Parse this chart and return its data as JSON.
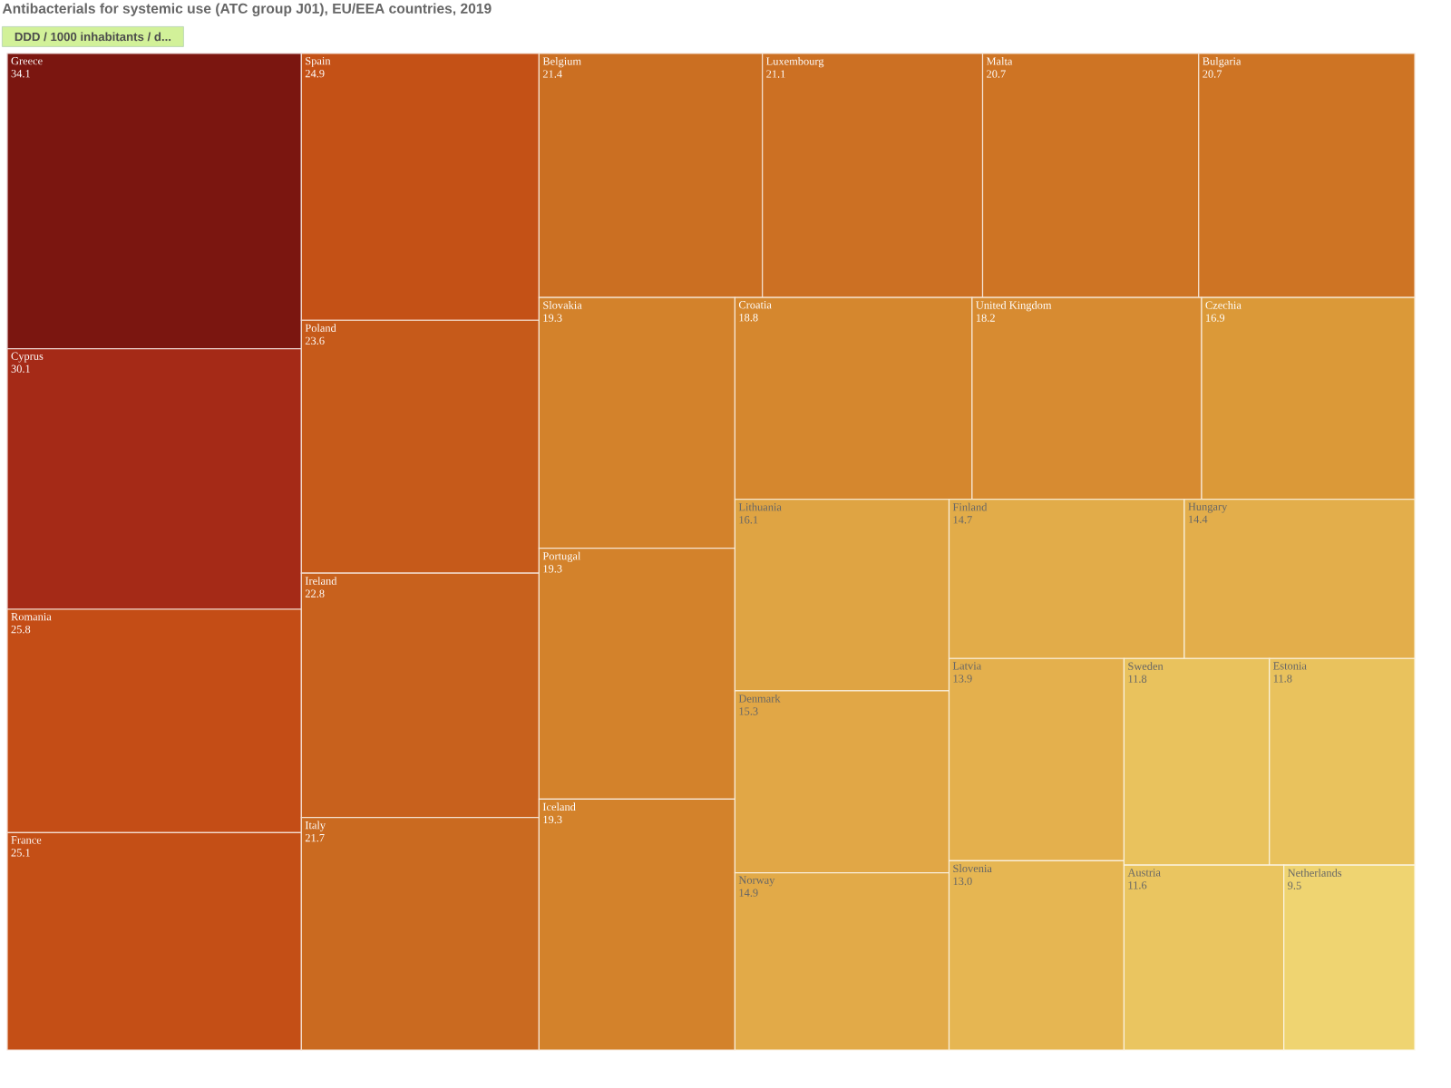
{
  "chart_data": {
    "type": "other",
    "title": "Antibacterials for systemic use (ATC group J01), EU/EEA countries, 2019",
    "subtitle": "DDD / 1000 inhabitants / d...",
    "categories": [
      "Greece",
      "Cyprus",
      "Romania",
      "France",
      "Spain",
      "Poland",
      "Ireland",
      "Italy",
      "Belgium",
      "Luxembourg",
      "Malta",
      "Bulgaria",
      "Slovakia",
      "Portugal",
      "Iceland",
      "Croatia",
      "United Kingdom",
      "Czechia",
      "Lithuania",
      "Denmark",
      "Norway",
      "Finland",
      "Hungary",
      "Latvia",
      "Slovenia",
      "Sweden",
      "Estonia",
      "Austria",
      "Netherlands"
    ],
    "values": [
      34.1,
      30.1,
      25.8,
      25.1,
      24.9,
      23.6,
      22.8,
      21.7,
      21.4,
      21.1,
      20.7,
      20.7,
      19.3,
      19.3,
      19.3,
      18.8,
      18.2,
      16.9,
      16.1,
      15.3,
      14.9,
      14.7,
      14.4,
      13.9,
      13.0,
      11.8,
      11.8,
      11.6,
      9.5
    ],
    "value_labels": [
      "34.1",
      "30.1",
      "25.8",
      "25.1",
      "24.9",
      "23.6",
      "22.8",
      "21.7",
      "21.4",
      "21.1",
      "20.7",
      "20.7",
      "19.3",
      "19.3",
      "19.3",
      "18.8",
      "18.2",
      "16.9",
      "16.1",
      "15.3",
      "14.9",
      "14.7",
      "14.4",
      "13.9",
      "13.0",
      "11.8",
      "11.8",
      "11.6",
      "9.5"
    ],
    "colors": [
      "#7b1610",
      "#a52a17",
      "#c44d16",
      "#c44f16",
      "#c45116",
      "#c65a1a",
      "#c8611d",
      "#ca6a20",
      "#cb6f22",
      "#cc7023",
      "#ce7424",
      "#ce7424",
      "#d3822b",
      "#d3822b",
      "#d3822b",
      "#d5872e",
      "#d78b31",
      "#db9938",
      "#dfa443",
      "#e1a746",
      "#e2aa48",
      "#e2ac49",
      "#e3ae4b",
      "#e4b04d",
      "#e6b652",
      "#e9c25d",
      "#e9c25d",
      "#eac560",
      "#efd471"
    ]
  }
}
